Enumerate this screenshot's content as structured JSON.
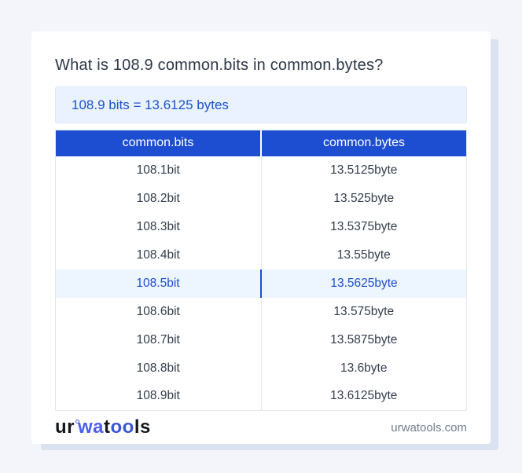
{
  "header": {
    "title": "What is 108.9 common.bits in common.bytes?"
  },
  "result": {
    "text": "108.9 bits = 13.6125 bytes"
  },
  "table": {
    "columns": [
      "common.bits",
      "common.bytes"
    ],
    "rows": [
      {
        "bits": "108.1bit",
        "bytes": "13.5125byte",
        "highlight": false
      },
      {
        "bits": "108.2bit",
        "bytes": "13.525byte",
        "highlight": false
      },
      {
        "bits": "108.3bit",
        "bytes": "13.5375byte",
        "highlight": false
      },
      {
        "bits": "108.4bit",
        "bytes": "13.55byte",
        "highlight": false
      },
      {
        "bits": "108.5bit",
        "bytes": "13.5625byte",
        "highlight": true
      },
      {
        "bits": "108.6bit",
        "bytes": "13.575byte",
        "highlight": false
      },
      {
        "bits": "108.7bit",
        "bytes": "13.5875byte",
        "highlight": false
      },
      {
        "bits": "108.8bit",
        "bytes": "13.6byte",
        "highlight": false
      },
      {
        "bits": "108.9bit",
        "bytes": "13.6125byte",
        "highlight": false
      }
    ]
  },
  "footer": {
    "logo": {
      "ur": "ur",
      "wa": "wa",
      "t": "t",
      "oo": "oo",
      "ls": "ls"
    },
    "site": "urwatools.com"
  },
  "colors": {
    "accent_blue": "#1d4ed2",
    "result_text_blue": "#1d52cf",
    "result_bg": "#e9f2fe",
    "highlight_row_bg": "#edf5fe",
    "highlight_text_blue": "#1d4fd0",
    "logo_blue": "#4c5ef2",
    "page_bg": "#f3f5fb",
    "card_bg": "#ffffff"
  }
}
